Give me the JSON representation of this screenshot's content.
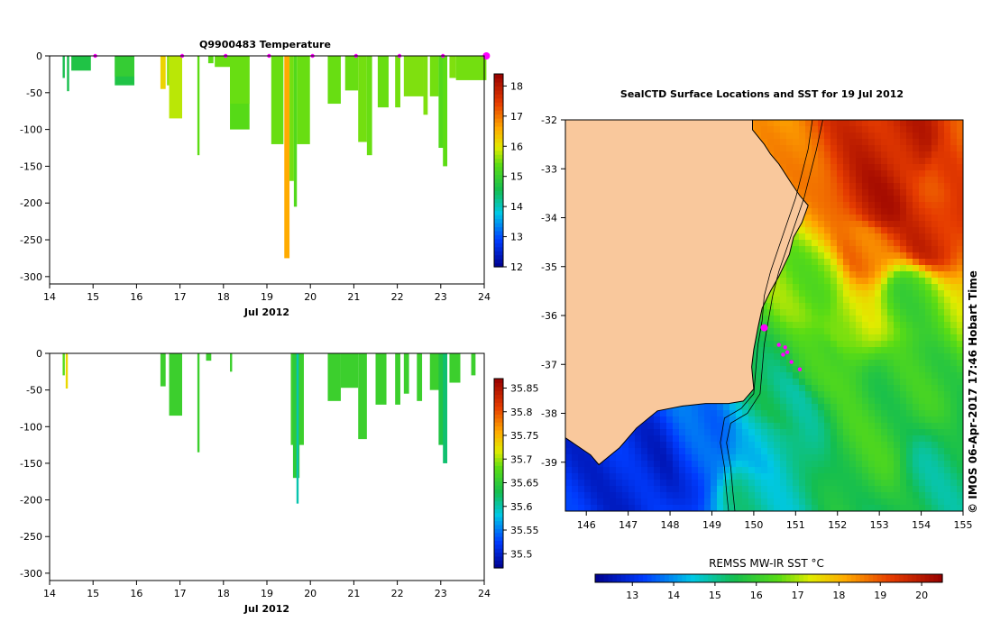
{
  "colors": {
    "land": "#f9c89c",
    "axis": "#000000",
    "marker": "#ff00ff",
    "background": "#ffffff"
  },
  "chart_data": [
    {
      "type": "heatmap",
      "title": "Q9900483  Temperature",
      "xlabel": "Jul 2012",
      "ylabel": "",
      "xlim": [
        14,
        24
      ],
      "ylim": [
        -310,
        0
      ],
      "x_ticks": [
        14,
        15,
        16,
        17,
        18,
        19,
        20,
        21,
        22,
        23,
        24
      ],
      "y_ticks": [
        0,
        -50,
        -100,
        -150,
        -200,
        -250,
        -300
      ],
      "colorbar": {
        "min": 12,
        "max": 18.4,
        "ticks": [
          12,
          13,
          14,
          15,
          16,
          17,
          18
        ],
        "tick_labels": [
          "12",
          "13",
          "14",
          "15",
          "16",
          "17",
          "18"
        ]
      },
      "surface_markers": [
        15.05,
        17.05,
        18.05,
        19.05,
        20.05,
        21.05,
        22.05,
        23.05,
        24.05
      ],
      "profiles": [
        {
          "x": 14.3,
          "w": 0.05,
          "depth": 30,
          "value": 14.6
        },
        {
          "x": 14.4,
          "w": 0.05,
          "depth": 48,
          "value": 14.6
        },
        {
          "x": 14.5,
          "w": 0.45,
          "depth": 20,
          "value": 14.7
        },
        {
          "x": 15.5,
          "w": 0.45,
          "depth": 40,
          "value": 14.7
        },
        {
          "x": 15.5,
          "w": 0.45,
          "depth": 28,
          "value": 14.95
        },
        {
          "x": 16.55,
          "w": 0.12,
          "depth": 45,
          "value": 16.2
        },
        {
          "x": 16.7,
          "w": 0.05,
          "depth": 40,
          "value": 15.6
        },
        {
          "x": 16.75,
          "w": 0.3,
          "depth": 85,
          "value": 15.8
        },
        {
          "x": 17.4,
          "w": 0.05,
          "depth": 135,
          "value": 15.4
        },
        {
          "x": 17.65,
          "w": 0.12,
          "depth": 10,
          "value": 15.4
        },
        {
          "x": 17.8,
          "w": 0.35,
          "depth": 15,
          "value": 15.45
        },
        {
          "x": 18.15,
          "w": 0.45,
          "depth": 100,
          "value": 15.35
        },
        {
          "x": 18.15,
          "w": 0.45,
          "depth": 65,
          "value": 15.45
        },
        {
          "x": 19.1,
          "w": 0.28,
          "depth": 120,
          "value": 15.45
        },
        {
          "x": 19.4,
          "w": 0.12,
          "depth": 275,
          "value": 16.6
        },
        {
          "x": 19.52,
          "w": 0.1,
          "depth": 170,
          "value": 15.5
        },
        {
          "x": 19.62,
          "w": 0.07,
          "depth": 205,
          "value": 15.3
        },
        {
          "x": 19.69,
          "w": 0.3,
          "depth": 120,
          "value": 15.45
        },
        {
          "x": 20.4,
          "w": 0.3,
          "depth": 65,
          "value": 15.45
        },
        {
          "x": 20.8,
          "w": 0.3,
          "depth": 47,
          "value": 15.45
        },
        {
          "x": 21.1,
          "w": 0.2,
          "depth": 117,
          "value": 15.5
        },
        {
          "x": 21.3,
          "w": 0.12,
          "depth": 135,
          "value": 15.45
        },
        {
          "x": 21.55,
          "w": 0.25,
          "depth": 70,
          "value": 15.45
        },
        {
          "x": 21.95,
          "w": 0.12,
          "depth": 70,
          "value": 15.5
        },
        {
          "x": 22.15,
          "w": 0.45,
          "depth": 55,
          "value": 15.55
        },
        {
          "x": 22.6,
          "w": 0.1,
          "depth": 80,
          "value": 15.55
        },
        {
          "x": 22.75,
          "w": 0.2,
          "depth": 55,
          "value": 15.5
        },
        {
          "x": 22.95,
          "w": 0.12,
          "depth": 125,
          "value": 15.3
        },
        {
          "x": 23.05,
          "w": 0.1,
          "depth": 150,
          "value": 15.4
        },
        {
          "x": 23.2,
          "w": 0.15,
          "depth": 30,
          "value": 15.55
        },
        {
          "x": 23.35,
          "w": 0.7,
          "depth": 33,
          "value": 15.5
        }
      ]
    },
    {
      "type": "heatmap",
      "title": "",
      "xlabel": "Jul 2012",
      "ylabel": "",
      "xlim": [
        14,
        24
      ],
      "ylim": [
        -310,
        0
      ],
      "x_ticks": [
        14,
        15,
        16,
        17,
        18,
        19,
        20,
        21,
        22,
        23,
        24
      ],
      "y_ticks": [
        0,
        -50,
        -100,
        -150,
        -200,
        -250,
        -300
      ],
      "colorbar": {
        "min": 35.47,
        "max": 35.87,
        "ticks": [
          35.5,
          35.55,
          35.6,
          35.65,
          35.7,
          35.75,
          35.8,
          35.85
        ],
        "tick_labels": [
          "35.5",
          "35.55",
          "35.6",
          "35.65",
          "35.7",
          "35.75",
          "35.8",
          "35.85"
        ]
      },
      "profiles": [
        {
          "x": 14.3,
          "w": 0.05,
          "depth": 30,
          "value": 35.68
        },
        {
          "x": 14.37,
          "w": 0.05,
          "depth": 48,
          "value": 35.73
        },
        {
          "x": 16.55,
          "w": 0.12,
          "depth": 45,
          "value": 35.66
        },
        {
          "x": 16.75,
          "w": 0.3,
          "depth": 85,
          "value": 35.66
        },
        {
          "x": 17.4,
          "w": 0.05,
          "depth": 135,
          "value": 35.66
        },
        {
          "x": 17.6,
          "w": 0.12,
          "depth": 10,
          "value": 35.66
        },
        {
          "x": 18.15,
          "w": 0.05,
          "depth": 25,
          "value": 35.66
        },
        {
          "x": 19.55,
          "w": 0.3,
          "depth": 125,
          "value": 35.66
        },
        {
          "x": 19.6,
          "w": 0.15,
          "depth": 170,
          "value": 35.65
        },
        {
          "x": 19.68,
          "w": 0.05,
          "depth": 205,
          "value": 35.6
        },
        {
          "x": 20.4,
          "w": 0.3,
          "depth": 65,
          "value": 35.66
        },
        {
          "x": 20.7,
          "w": 0.4,
          "depth": 47,
          "value": 35.66
        },
        {
          "x": 21.1,
          "w": 0.2,
          "depth": 117,
          "value": 35.66
        },
        {
          "x": 21.5,
          "w": 0.25,
          "depth": 70,
          "value": 35.66
        },
        {
          "x": 21.95,
          "w": 0.12,
          "depth": 70,
          "value": 35.66
        },
        {
          "x": 22.15,
          "w": 0.12,
          "depth": 55,
          "value": 35.66
        },
        {
          "x": 22.45,
          "w": 0.12,
          "depth": 65,
          "value": 35.66
        },
        {
          "x": 22.75,
          "w": 0.3,
          "depth": 50,
          "value": 35.66
        },
        {
          "x": 22.95,
          "w": 0.15,
          "depth": 125,
          "value": 35.64
        },
        {
          "x": 23.05,
          "w": 0.1,
          "depth": 150,
          "value": 35.62
        },
        {
          "x": 23.2,
          "w": 0.25,
          "depth": 40,
          "value": 35.66
        },
        {
          "x": 23.7,
          "w": 0.1,
          "depth": 30,
          "value": 35.66
        }
      ]
    },
    {
      "type": "heatmap",
      "title": "SealCTD Surface Locations and SST for 19 Jul 2012",
      "xlabel": "",
      "ylabel": "",
      "xlim": [
        145.5,
        155
      ],
      "ylim": [
        -40,
        -32
      ],
      "x_ticks": [
        146,
        147,
        148,
        149,
        150,
        151,
        152,
        153,
        154,
        155
      ],
      "y_ticks": [
        -32,
        -33,
        -34,
        -35,
        -36,
        -37,
        -38,
        -39
      ],
      "colorbar": {
        "label": "REMSS MW-IR SST °C",
        "min": 12.1,
        "max": 20.5,
        "ticks": [
          13,
          14,
          15,
          16,
          17,
          18,
          19,
          20
        ],
        "tick_labels": [
          "13",
          "14",
          "15",
          "16",
          "17",
          "18",
          "19",
          "20"
        ]
      },
      "sst_anchor_points": [
        {
          "lon": 153.8,
          "lat": -32.6,
          "sst": 19.8
        },
        {
          "lon": 154.6,
          "lat": -32.9,
          "sst": 19.0
        },
        {
          "lon": 153.0,
          "lat": -33.7,
          "sst": 19.9
        },
        {
          "lon": 154.2,
          "lat": -34.4,
          "sst": 19.6
        },
        {
          "lon": 152.7,
          "lat": -34.6,
          "sst": 18.8
        },
        {
          "lon": 151.5,
          "lat": -35.3,
          "sst": 16.7
        },
        {
          "lon": 153.8,
          "lat": -35.6,
          "sst": 16.3
        },
        {
          "lon": 152.3,
          "lat": -36.2,
          "sst": 17.1
        },
        {
          "lon": 153.5,
          "lat": -37.3,
          "sst": 15.9
        },
        {
          "lon": 151.5,
          "lat": -37.0,
          "sst": 16.0
        },
        {
          "lon": 150.8,
          "lat": -37.8,
          "sst": 15.2
        },
        {
          "lon": 152.8,
          "lat": -38.6,
          "sst": 16.0
        },
        {
          "lon": 154.4,
          "lat": -39.3,
          "sst": 15.2
        },
        {
          "lon": 150.3,
          "lat": -38.7,
          "sst": 14.6
        },
        {
          "lon": 148.7,
          "lat": -38.9,
          "sst": 13.4
        },
        {
          "lon": 147.5,
          "lat": -39.3,
          "sst": 12.8
        },
        {
          "lon": 146.2,
          "lat": -39.6,
          "sst": 13.0
        },
        {
          "lon": 150.0,
          "lat": -39.7,
          "sst": 14.9
        }
      ],
      "coastline": [
        [
          149.97,
          -32.0
        ],
        [
          149.97,
          -32.2
        ],
        [
          150.25,
          -32.5
        ],
        [
          150.4,
          -32.7
        ],
        [
          150.6,
          -32.9
        ],
        [
          150.9,
          -33.3
        ],
        [
          151.1,
          -33.55
        ],
        [
          151.3,
          -33.75
        ],
        [
          151.15,
          -34.1
        ],
        [
          150.95,
          -34.4
        ],
        [
          150.85,
          -34.75
        ],
        [
          150.6,
          -35.2
        ],
        [
          150.4,
          -35.5
        ],
        [
          150.2,
          -35.85
        ],
        [
          150.1,
          -36.25
        ],
        [
          150.0,
          -36.7
        ],
        [
          149.95,
          -37.05
        ],
        [
          150.0,
          -37.5
        ],
        [
          149.75,
          -37.75
        ],
        [
          149.4,
          -37.8
        ],
        [
          148.85,
          -37.8
        ],
        [
          148.3,
          -37.85
        ],
        [
          147.7,
          -37.95
        ],
        [
          147.2,
          -38.3
        ],
        [
          146.8,
          -38.7
        ],
        [
          146.3,
          -39.05
        ],
        [
          146.1,
          -38.85
        ],
        [
          145.5,
          -38.5
        ]
      ],
      "isobath_inner": [
        [
          151.4,
          -32.0
        ],
        [
          151.3,
          -32.6
        ],
        [
          151.15,
          -33.1
        ],
        [
          151.0,
          -33.6
        ],
        [
          150.8,
          -34.1
        ],
        [
          150.6,
          -34.6
        ],
        [
          150.4,
          -35.1
        ],
        [
          150.25,
          -35.6
        ],
        [
          150.2,
          -36.1
        ],
        [
          150.1,
          -36.6
        ],
        [
          150.05,
          -37.1
        ],
        [
          150.0,
          -37.6
        ],
        [
          149.7,
          -37.9
        ],
        [
          149.3,
          -38.1
        ],
        [
          149.2,
          -38.6
        ],
        [
          149.3,
          -39.1
        ],
        [
          149.35,
          -39.6
        ],
        [
          149.4,
          -40.0
        ]
      ],
      "isobath_outer": [
        [
          151.65,
          -32.0
        ],
        [
          151.5,
          -32.6
        ],
        [
          151.35,
          -33.1
        ],
        [
          151.2,
          -33.6
        ],
        [
          151.0,
          -34.1
        ],
        [
          150.8,
          -34.6
        ],
        [
          150.6,
          -35.1
        ],
        [
          150.45,
          -35.6
        ],
        [
          150.35,
          -36.1
        ],
        [
          150.25,
          -36.6
        ],
        [
          150.2,
          -37.1
        ],
        [
          150.15,
          -37.6
        ],
        [
          149.85,
          -38.0
        ],
        [
          149.45,
          -38.2
        ],
        [
          149.35,
          -38.6
        ],
        [
          149.45,
          -39.1
        ],
        [
          149.5,
          -39.6
        ],
        [
          149.55,
          -40.0
        ]
      ],
      "seal_locations": [
        {
          "lon": 150.25,
          "lat": -36.25,
          "large": true
        },
        {
          "lon": 150.6,
          "lat": -36.6,
          "large": false
        },
        {
          "lon": 150.75,
          "lat": -36.65,
          "large": false
        },
        {
          "lon": 150.8,
          "lat": -36.75,
          "large": false
        },
        {
          "lon": 150.7,
          "lat": -36.8,
          "large": false
        },
        {
          "lon": 150.9,
          "lat": -36.95,
          "large": false
        },
        {
          "lon": 151.1,
          "lat": -37.1,
          "large": false
        }
      ]
    }
  ],
  "credit": "© IMOS 06-Apr-2017 17:46 Hobart Time"
}
